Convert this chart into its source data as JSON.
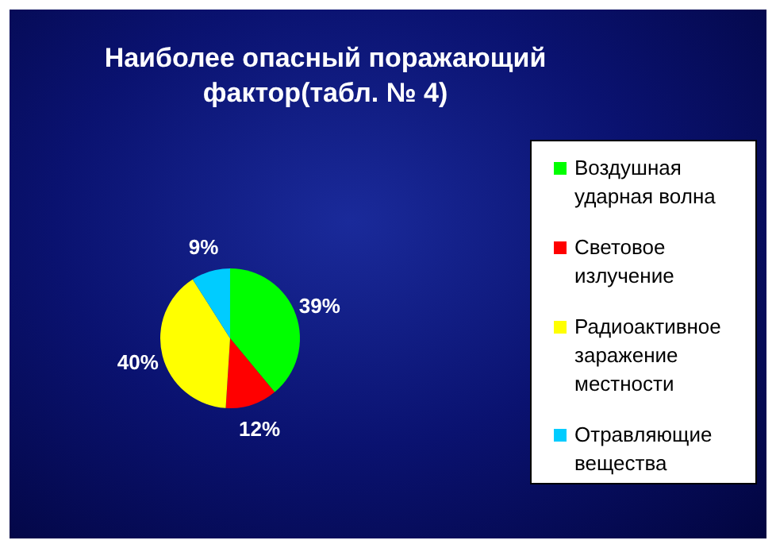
{
  "chart_data": {
    "type": "pie",
    "title": "Наиболее опасный поражающий фактор(табл. № 4)",
    "categories": [
      "Воздушная ударная волна",
      "Световое излучение",
      "Радиоактивное заражение местности",
      "Отравляющие вещества"
    ],
    "values": [
      39,
      12,
      40,
      9
    ],
    "colors": [
      "#00ff00",
      "#ff0000",
      "#ffff00",
      "#00ccff"
    ],
    "value_labels": [
      "39%",
      "12%",
      "40%",
      "9%"
    ],
    "legend": "right"
  }
}
